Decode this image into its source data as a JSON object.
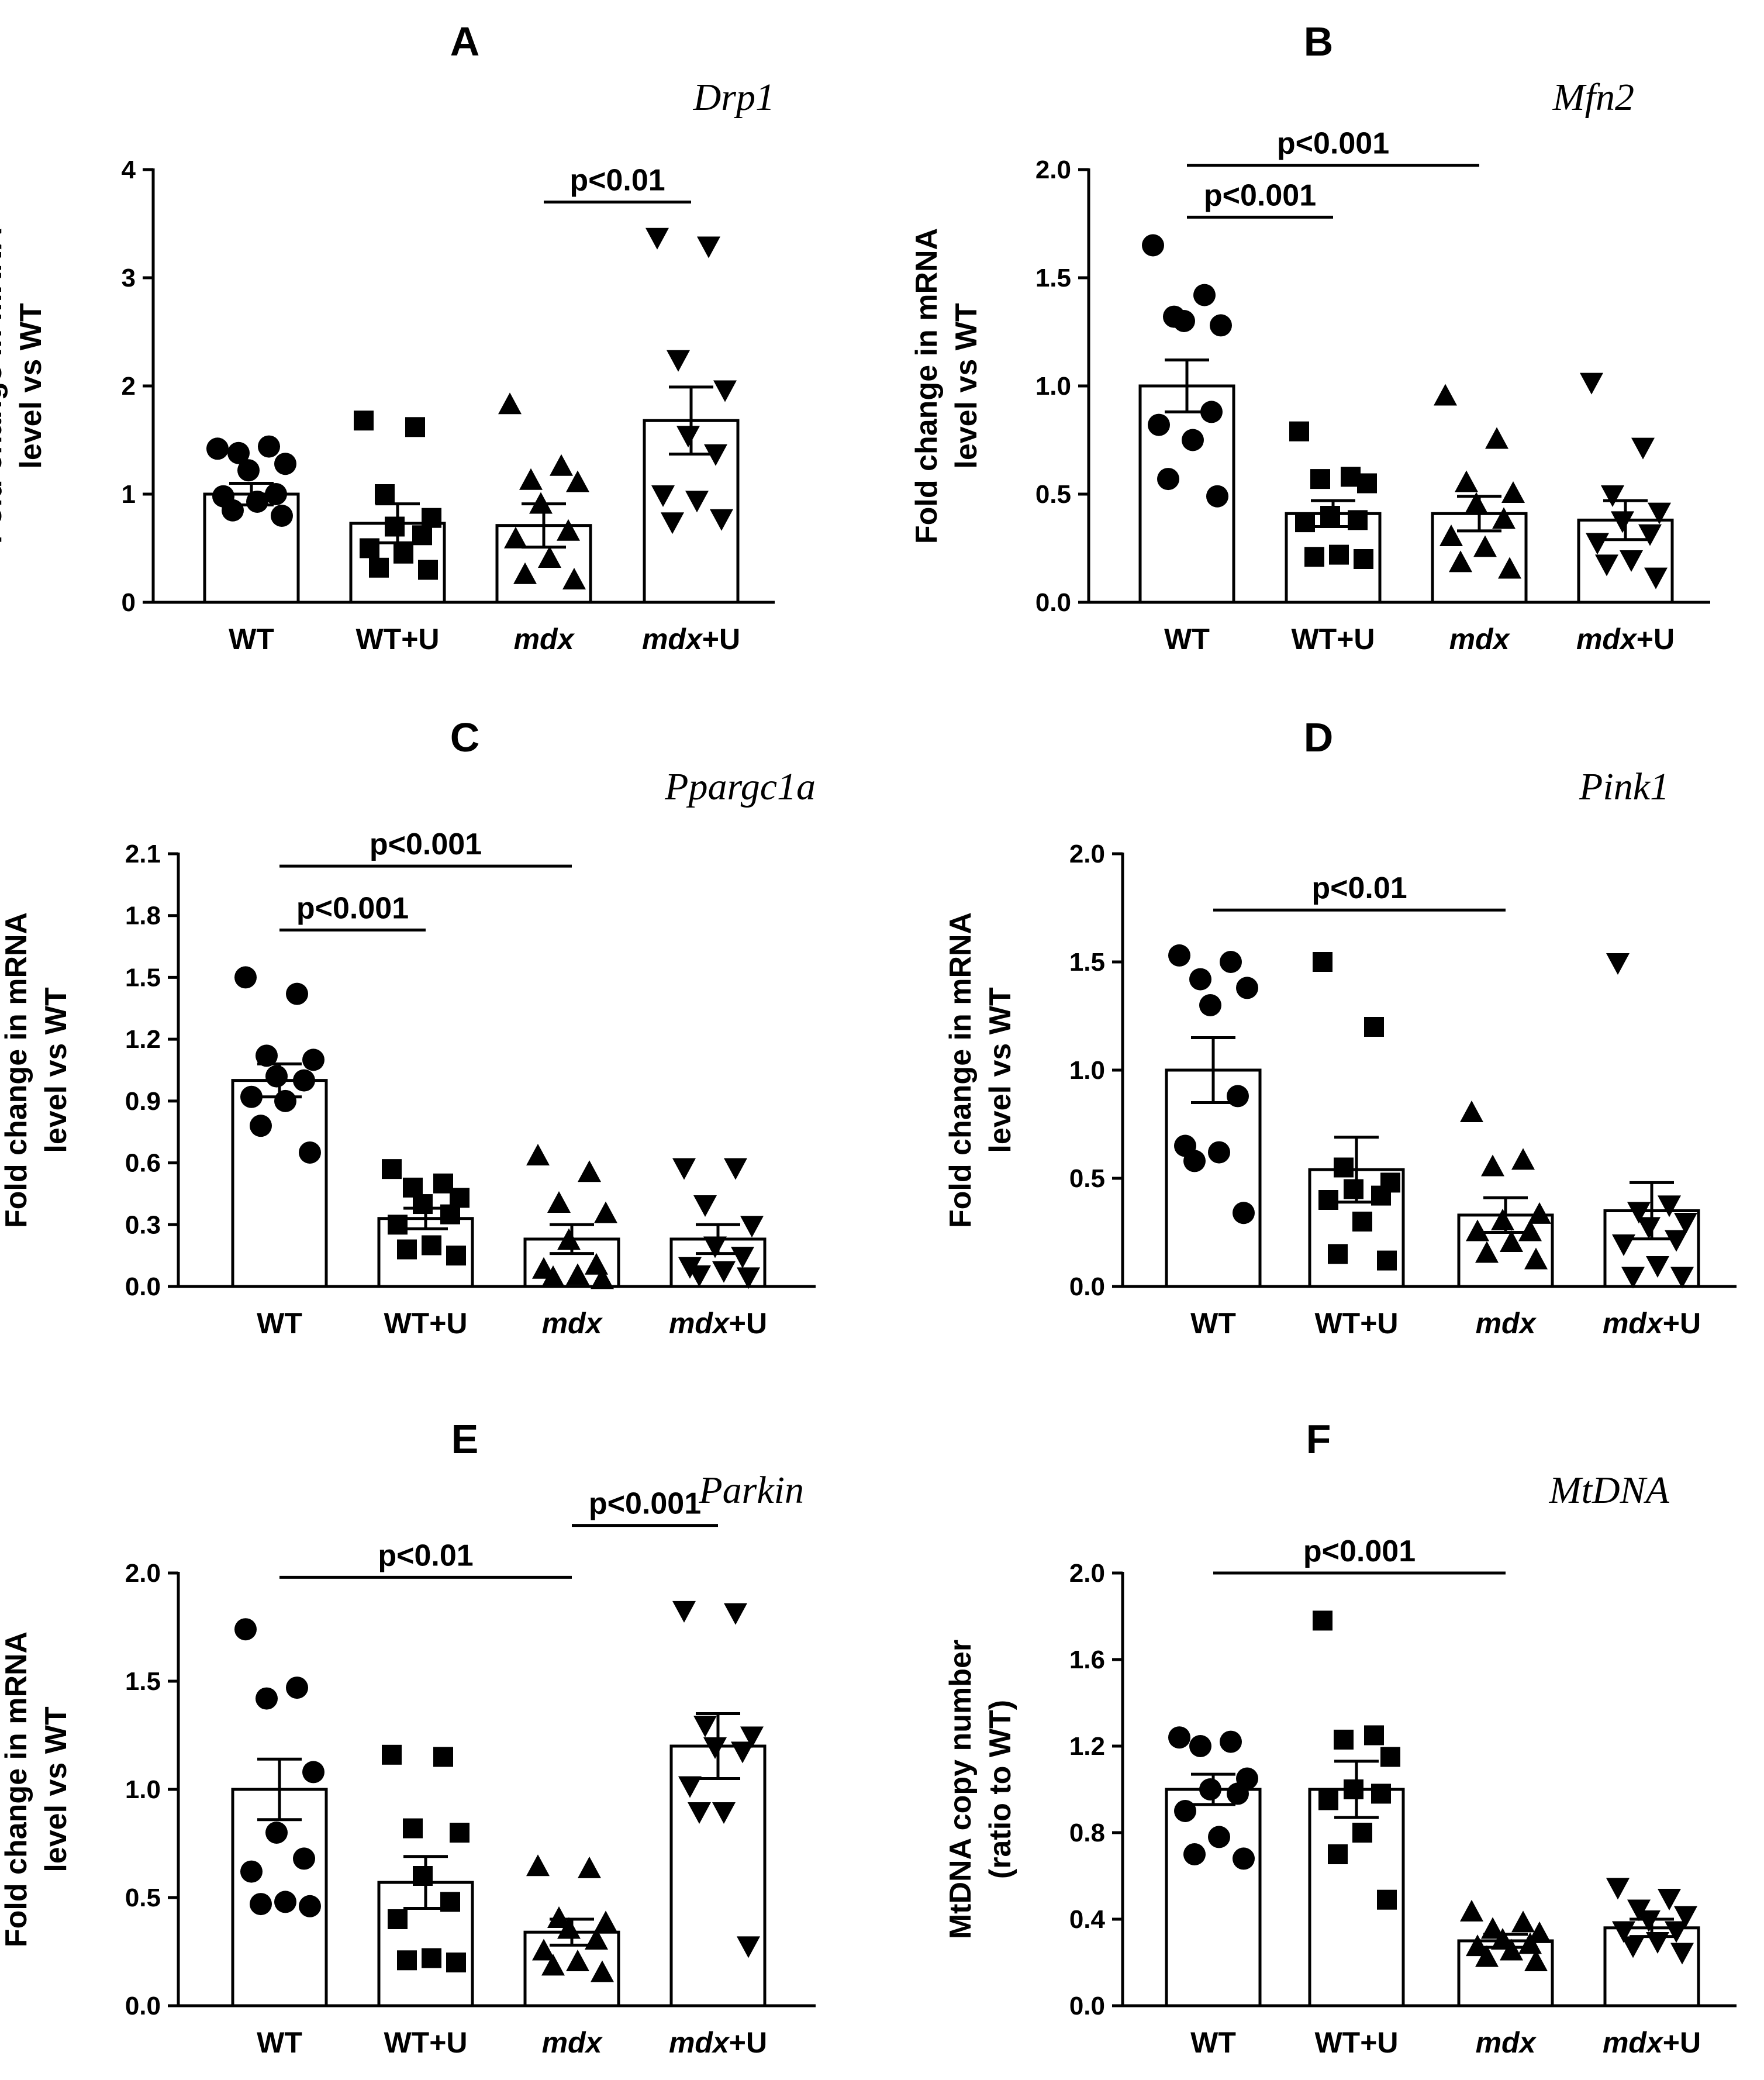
{
  "chart_data": [
    {
      "type": "bar",
      "panel": "A",
      "title": "Drp1",
      "ylabel": [
        "Fold change in mRNA",
        "level vs WT"
      ],
      "ylim": [
        0,
        4
      ],
      "yticks": [
        0,
        1,
        2,
        3,
        4
      ],
      "tick_labels": [
        "0",
        "1",
        "2",
        "3",
        "4"
      ],
      "categories": [
        "WT",
        "WT+U",
        "mdx",
        "mdx+U"
      ],
      "italic_part": [
        "",
        "",
        "mdx",
        "mdx"
      ],
      "markers": [
        "circle",
        "square",
        "triangle-up",
        "triangle-down"
      ],
      "means": [
        1.0,
        0.73,
        0.71,
        1.68
      ],
      "sem": [
        0.1,
        0.18,
        0.2,
        0.31
      ],
      "points": [
        [
          1.42,
          1.44,
          1.38,
          1.28,
          1.22,
          1.0,
          0.98,
          0.93,
          0.85,
          0.8
        ],
        [
          1.68,
          1.62,
          1.0,
          0.78,
          0.7,
          0.62,
          0.5,
          0.45,
          0.32,
          0.3
        ],
        [
          1.82,
          1.25,
          1.12,
          1.1,
          0.9,
          0.65,
          0.58,
          0.4,
          0.25,
          0.2
        ],
        [
          3.38,
          3.3,
          2.25,
          1.97,
          1.55,
          1.38,
          1.0,
          0.95,
          0.75,
          0.78
        ]
      ],
      "significance": [
        {
          "label": "p<0.01",
          "from": 2,
          "to": 3,
          "y": 3.7
        }
      ]
    },
    {
      "type": "bar",
      "panel": "B",
      "title": "Mfn2",
      "ylabel": [
        "Fold change in mRNA",
        "level vs WT"
      ],
      "ylim": [
        0,
        2.0
      ],
      "yticks": [
        0,
        0.5,
        1.0,
        1.5,
        2.0
      ],
      "tick_labels": [
        "0.0",
        "0.5",
        "1.0",
        "1.5",
        "2.0"
      ],
      "categories": [
        "WT",
        "WT+U",
        "mdx",
        "mdx+U"
      ],
      "italic_part": [
        "",
        "",
        "mdx",
        "mdx"
      ],
      "markers": [
        "circle",
        "square",
        "triangle-up",
        "triangle-down"
      ],
      "means": [
        1.0,
        0.41,
        0.41,
        0.38
      ],
      "sem": [
        0.12,
        0.06,
        0.08,
        0.09
      ],
      "points": [
        [
          1.65,
          1.42,
          1.32,
          1.28,
          1.3,
          0.88,
          0.82,
          0.75,
          0.57,
          0.49
        ],
        [
          0.79,
          0.58,
          0.57,
          0.55,
          0.4,
          0.38,
          0.37,
          0.22,
          0.21,
          0.2
        ],
        [
          0.95,
          0.75,
          0.55,
          0.5,
          0.45,
          0.38,
          0.3,
          0.25,
          0.18,
          0.15
        ],
        [
          1.02,
          0.72,
          0.5,
          0.42,
          0.38,
          0.32,
          0.28,
          0.2,
          0.18,
          0.12
        ]
      ],
      "significance": [
        {
          "label": "p<0.001",
          "from": 0,
          "to": 1,
          "y": 1.78
        },
        {
          "label": "p<0.001",
          "from": 0,
          "to": 2,
          "y": 2.02
        }
      ]
    },
    {
      "type": "bar",
      "panel": "C",
      "title": "Ppargc1a",
      "ylabel": [
        "Fold change in mRNA",
        "level vs WT"
      ],
      "ylim": [
        0,
        2.25
      ],
      "yticks": [
        0,
        0.3,
        0.6,
        0.9,
        1.2,
        1.5,
        1.8,
        2.1
      ],
      "tick_labels": [
        "0.0",
        "0.3",
        "0.6",
        "0.9",
        "1.2",
        "1.5",
        "1.8",
        "2.1"
      ],
      "categories": [
        "WT",
        "WT+U",
        "mdx",
        "mdx+U"
      ],
      "italic_part": [
        "",
        "",
        "mdx",
        "mdx"
      ],
      "markers": [
        "circle",
        "square",
        "triangle-up",
        "triangle-down"
      ],
      "means": [
        1.0,
        0.33,
        0.23,
        0.23
      ],
      "sem": [
        0.08,
        0.05,
        0.07,
        0.07
      ],
      "points": [
        [
          1.5,
          1.42,
          1.12,
          1.1,
          1.02,
          1.0,
          0.92,
          0.9,
          0.78,
          0.65
        ],
        [
          0.57,
          0.5,
          0.48,
          0.43,
          0.4,
          0.35,
          0.3,
          0.2,
          0.18,
          0.15
        ],
        [
          0.63,
          0.55,
          0.4,
          0.35,
          0.22,
          0.1,
          0.08,
          0.05,
          0.04,
          0.03
        ],
        [
          0.58,
          0.58,
          0.4,
          0.3,
          0.2,
          0.15,
          0.1,
          0.08,
          0.06,
          0.05
        ]
      ],
      "significance": [
        {
          "label": "p<0.001",
          "from": 0,
          "to": 1,
          "y": 1.73
        },
        {
          "label": "p<0.001",
          "from": 0,
          "to": 2,
          "y": 2.04
        }
      ]
    },
    {
      "type": "bar",
      "panel": "D",
      "title": "Pink1",
      "ylabel": [
        "Fold change in mRNA",
        "level vs WT"
      ],
      "ylim": [
        0,
        2.0
      ],
      "yticks": [
        0,
        0.5,
        1.0,
        1.5,
        2.0
      ],
      "tick_labels": [
        "0.0",
        "0.5",
        "1.0",
        "1.5",
        "2.0"
      ],
      "categories": [
        "WT",
        "WT+U",
        "mdx",
        "mdx+U"
      ],
      "italic_part": [
        "",
        "",
        "mdx",
        "mdx"
      ],
      "markers": [
        "circle",
        "square",
        "triangle-up",
        "triangle-down"
      ],
      "means": [
        1.0,
        0.54,
        0.33,
        0.35
      ],
      "sem": [
        0.15,
        0.15,
        0.08,
        0.13
      ],
      "points": [
        [
          1.53,
          1.5,
          1.42,
          1.38,
          1.3,
          0.88,
          0.65,
          0.62,
          0.58,
          0.34
        ],
        [
          1.5,
          1.2,
          0.55,
          0.48,
          0.45,
          0.42,
          0.4,
          0.3,
          0.15,
          0.12
        ],
        [
          0.8,
          0.58,
          0.55,
          0.33,
          0.3,
          0.25,
          0.25,
          0.2,
          0.15,
          0.12
        ],
        [
          1.5,
          0.38,
          0.35,
          0.3,
          0.28,
          0.22,
          0.2,
          0.1,
          0.05,
          0.05
        ]
      ],
      "significance": [
        {
          "label": "p<0.01",
          "from": 0,
          "to": 2,
          "y": 1.74
        }
      ]
    },
    {
      "type": "bar",
      "panel": "E",
      "title": "Parkin",
      "ylabel": [
        "Fold change in mRNA",
        "level vs WT"
      ],
      "ylim": [
        0,
        2.0
      ],
      "yticks": [
        0,
        0.5,
        1.0,
        1.5,
        2.0
      ],
      "tick_labels": [
        "0.0",
        "0.5",
        "1.0",
        "1.5",
        "2.0"
      ],
      "categories": [
        "WT",
        "WT+U",
        "mdx",
        "mdx+U"
      ],
      "italic_part": [
        "",
        "",
        "mdx",
        "mdx"
      ],
      "markers": [
        "circle",
        "square",
        "triangle-up",
        "triangle-down"
      ],
      "means": [
        1.0,
        0.57,
        0.34,
        1.2
      ],
      "sem": [
        0.14,
        0.12,
        0.06,
        0.15
      ],
      "points": [
        [
          1.74,
          1.47,
          1.42,
          1.08,
          0.8,
          0.68,
          0.62,
          0.48,
          0.47,
          0.46
        ],
        [
          1.16,
          1.15,
          0.82,
          0.8,
          0.6,
          0.48,
          0.4,
          0.22,
          0.21,
          0.2
        ],
        [
          0.64,
          0.63,
          0.4,
          0.38,
          0.35,
          0.3,
          0.25,
          0.2,
          0.18,
          0.15
        ],
        [
          1.83,
          1.82,
          1.3,
          1.25,
          1.2,
          1.18,
          1.02,
          0.9,
          0.9,
          0.28
        ]
      ],
      "significance": [
        {
          "label": "p<0.01",
          "from": 0,
          "to": 2,
          "y": 1.98
        },
        {
          "label": "p<0.001",
          "from": 2,
          "to": 3,
          "y": 2.22
        }
      ]
    },
    {
      "type": "bar",
      "panel": "F",
      "title": "MtDNA",
      "ylabel": [
        "MtDNA copy number",
        "(ratio to WT)"
      ],
      "ylim": [
        0,
        2.0
      ],
      "yticks": [
        0,
        0.4,
        0.8,
        1.2,
        1.6,
        2.0
      ],
      "tick_labels": [
        "0.0",
        "0.4",
        "0.8",
        "1.2",
        "1.6",
        "2.0"
      ],
      "categories": [
        "WT",
        "WT+U",
        "mdx",
        "mdx+U"
      ],
      "italic_part": [
        "",
        "",
        "mdx",
        "mdx"
      ],
      "markers": [
        "circle",
        "square",
        "triangle-up",
        "triangle-down"
      ],
      "means": [
        1.0,
        1.0,
        0.3,
        0.36
      ],
      "sem": [
        0.07,
        0.13,
        0.03,
        0.04
      ],
      "points": [
        [
          1.24,
          1.22,
          1.2,
          1.05,
          1.0,
          0.98,
          0.9,
          0.78,
          0.7,
          0.68
        ],
        [
          1.78,
          1.25,
          1.23,
          1.15,
          1.0,
          0.98,
          0.95,
          0.8,
          0.7,
          0.49
        ],
        [
          0.43,
          0.38,
          0.35,
          0.33,
          0.3,
          0.28,
          0.27,
          0.25,
          0.22,
          0.2
        ],
        [
          0.55,
          0.5,
          0.45,
          0.42,
          0.4,
          0.35,
          0.35,
          0.3,
          0.28,
          0.25
        ]
      ],
      "significance": [
        {
          "label": "p<0.001",
          "from": 0,
          "to": 2,
          "y": 2.0
        }
      ]
    }
  ]
}
